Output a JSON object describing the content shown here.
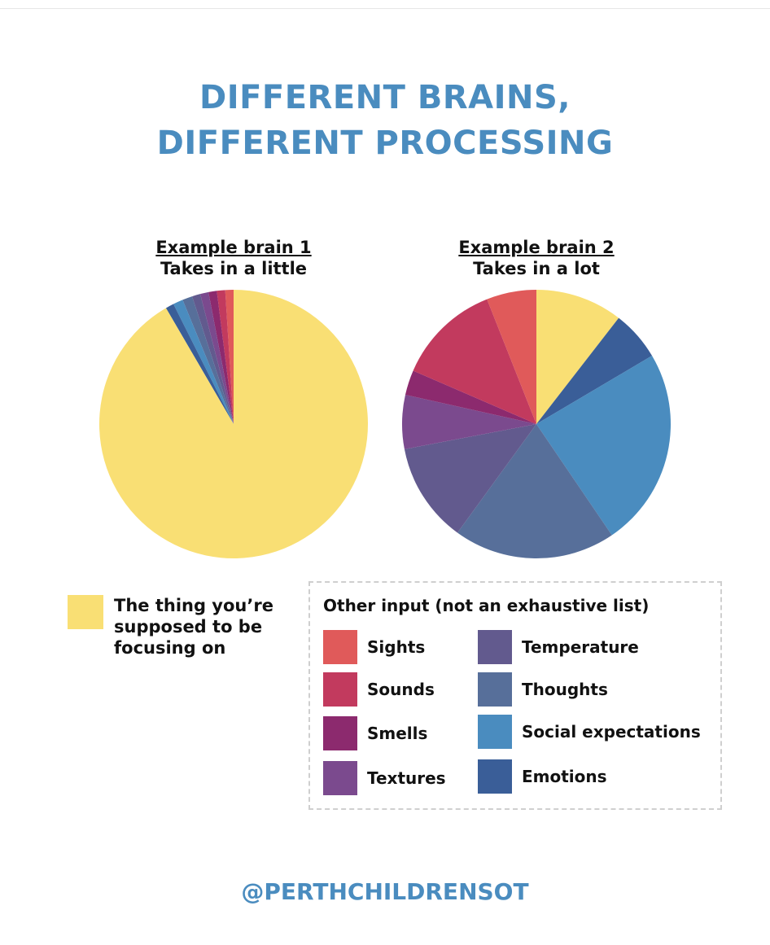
{
  "title": {
    "line1": "DIFFERENT BRAINS,",
    "line2": "DIFFERENT PROCESSING"
  },
  "colors": {
    "title": "#4a8cbf",
    "focus": "#f9df74",
    "sights": "#e05a5a",
    "sounds": "#c23a5e",
    "smells": "#8c2a6e",
    "textures": "#7b4a8e",
    "temperature": "#625a8e",
    "thoughts": "#576f9a",
    "social": "#4a8cbf",
    "emotions": "#3a5e98"
  },
  "chart_data": [
    {
      "type": "pie",
      "title": "Example brain 1",
      "subtitle": "Takes in a little",
      "start": "12 o'clock",
      "direction": "counter-clockwise",
      "slices": [
        {
          "key": "sights",
          "label": "Sights",
          "value": 1.0
        },
        {
          "key": "sounds",
          "label": "Sounds",
          "value": 1.0
        },
        {
          "key": "smells",
          "label": "Smells",
          "value": 1.0
        },
        {
          "key": "textures",
          "label": "Textures",
          "value": 1.0
        },
        {
          "key": "temperature",
          "label": "Temperature",
          "value": 1.0
        },
        {
          "key": "thoughts",
          "label": "Thoughts",
          "value": 1.2
        },
        {
          "key": "social",
          "label": "Social expectations",
          "value": 1.2
        },
        {
          "key": "emotions",
          "label": "Emotions",
          "value": 1.0
        },
        {
          "key": "focus",
          "label": "The thing you're supposed to be focusing on",
          "value": 91.6
        }
      ]
    },
    {
      "type": "pie",
      "title": "Example brain 2",
      "subtitle": "Takes in a lot",
      "start": "12 o'clock",
      "direction": "clockwise",
      "slices": [
        {
          "key": "focus",
          "label": "The thing you're supposed to be focusing on",
          "value": 10.5
        },
        {
          "key": "emotions",
          "label": "Emotions",
          "value": 6.0
        },
        {
          "key": "social",
          "label": "Social expectations",
          "value": 24.0
        },
        {
          "key": "thoughts",
          "label": "Thoughts",
          "value": 19.5
        },
        {
          "key": "temperature",
          "label": "Temperature",
          "value": 12.0
        },
        {
          "key": "textures",
          "label": "Textures",
          "value": 6.5
        },
        {
          "key": "smells",
          "label": "Smells",
          "value": 3.0
        },
        {
          "key": "sounds",
          "label": "Sounds",
          "value": 12.5
        },
        {
          "key": "sights",
          "label": "Sights",
          "value": 6.0
        }
      ]
    }
  ],
  "focus_legend": {
    "line1": "The thing you’re",
    "line2": "supposed to be",
    "line3": "focusing on"
  },
  "legend": {
    "title": "Other input (not an exhaustive list)",
    "items": [
      {
        "key": "sights",
        "label": "Sights"
      },
      {
        "key": "sounds",
        "label": "Sounds"
      },
      {
        "key": "smells",
        "label": "Smells"
      },
      {
        "key": "textures",
        "label": "Textures"
      },
      {
        "key": "temperature",
        "label": "Temperature"
      },
      {
        "key": "thoughts",
        "label": "Thoughts"
      },
      {
        "key": "social",
        "label": "Social expectations"
      },
      {
        "key": "emotions",
        "label": "Emotions"
      }
    ]
  },
  "footer": "@PERTHCHILDRENSOT"
}
